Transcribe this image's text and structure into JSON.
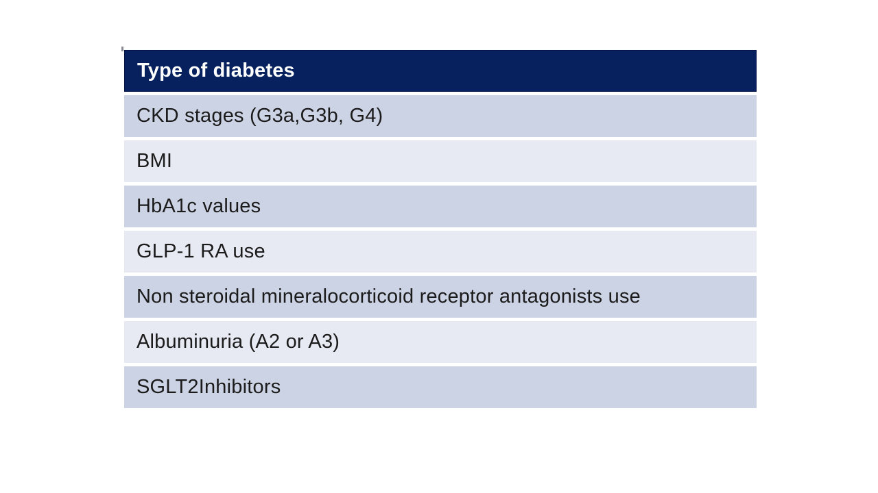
{
  "slide": {
    "background": "#ffffff"
  },
  "table": {
    "header": {
      "label": "Type of diabetes",
      "bg": "#06215e",
      "text_color": "#ffffff"
    },
    "row_colors": {
      "odd": "#ccd3e4",
      "even": "#e7eaf3",
      "separator": "#fdfdfe",
      "text": "#1b1b1b"
    },
    "rows": [
      "CKD stages (G3a,G3b, G4)",
      "BMI",
      "HbA1c values",
      "GLP-1 RA use",
      "Non steroidal mineralocorticoid receptor antagonists use",
      "Albuminuria (A2 or A3)",
      "SGLT2Inhibitors"
    ]
  }
}
